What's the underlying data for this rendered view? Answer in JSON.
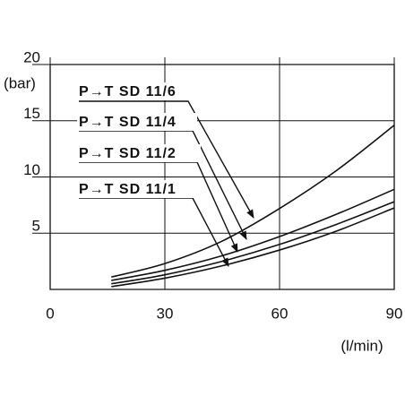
{
  "chart_data": {
    "type": "line",
    "y_label": "(bar)",
    "x_label": "(l/min)",
    "x": [
      16,
      30,
      45,
      60,
      75,
      90
    ],
    "series": [
      {
        "name": "P→T SD 11/6",
        "color": "#111111",
        "values": [
          1.1,
          2.3,
          4.3,
          7.2,
          10.6,
          14.6
        ]
      },
      {
        "name": "P→T SD 11/4",
        "color": "#111111",
        "values": [
          0.8,
          1.7,
          3.0,
          4.7,
          6.7,
          8.9
        ]
      },
      {
        "name": "P→T SD 11/2",
        "color": "#111111",
        "values": [
          0.5,
          1.3,
          2.5,
          4.0,
          5.8,
          7.8
        ]
      },
      {
        "name": "P→T SD 11/1",
        "color": "#111111",
        "values": [
          0.25,
          1.0,
          2.1,
          3.5,
          5.2,
          7.25
        ]
      }
    ],
    "xlim": [
      0,
      90
    ],
    "ylim": [
      0,
      20
    ],
    "xticks": [
      0,
      30,
      60,
      90
    ],
    "yticks": [
      5,
      10,
      15,
      20
    ],
    "grid": true
  }
}
